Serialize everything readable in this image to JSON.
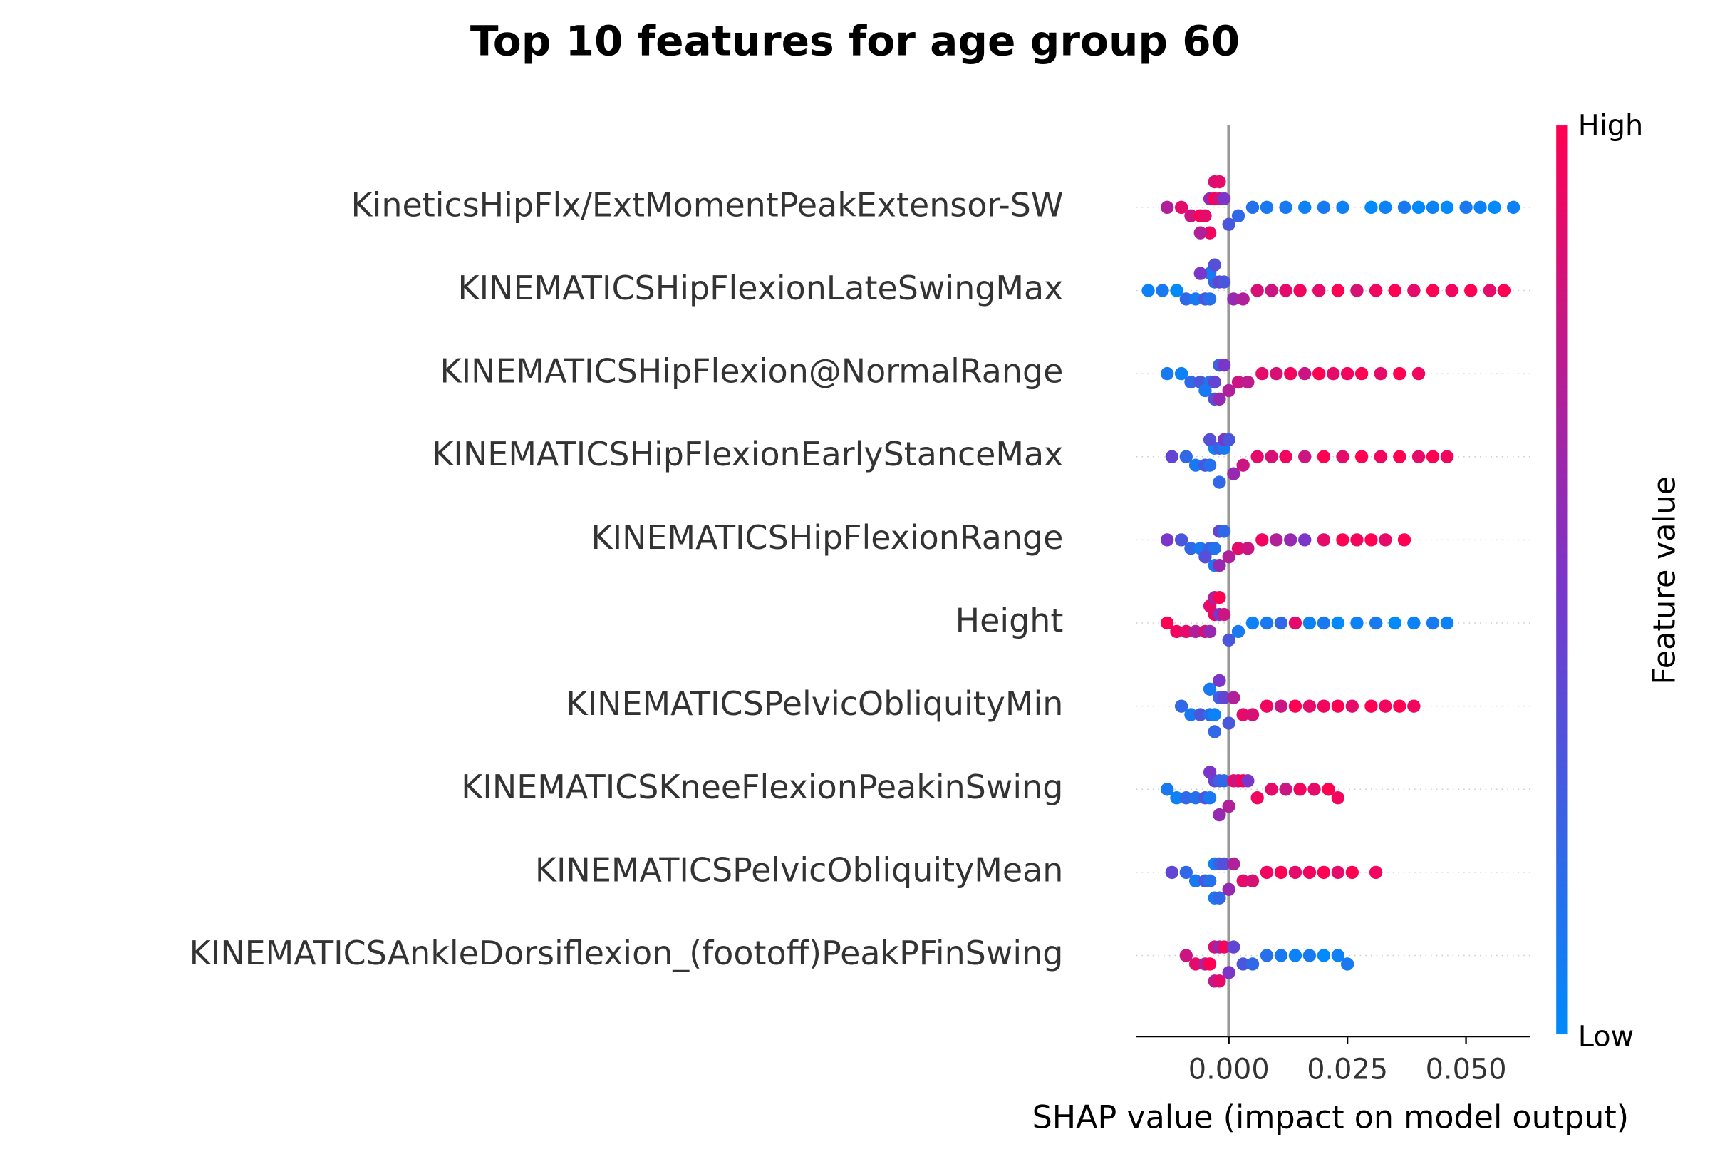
{
  "chart_data": {
    "type": "beeswarm",
    "title": "Top 10 features for age group 60",
    "xlabel": "SHAP value (impact on model output)",
    "xlim": [
      -0.0195,
      0.0635
    ],
    "xticks": [
      {
        "value": 0,
        "label": "0.000"
      },
      {
        "value": 0.025,
        "label": "0.025"
      },
      {
        "value": 0.05,
        "label": "0.050"
      }
    ],
    "colorbar": {
      "label": "Feature value",
      "high": "High",
      "low": "Low",
      "colors": [
        "#008afb",
        "#7b35c9",
        "#ff0052"
      ]
    },
    "features": [
      {
        "name": "KineticsHipFlx/ExtMomentPeakExtensor-SW",
        "shap": [
          -0.013,
          -0.01,
          -0.008,
          -0.006,
          -0.005,
          -0.004,
          -0.003,
          -0.002,
          -0.001,
          -0.004,
          -0.006,
          -0.003,
          -0.002,
          0.0,
          0.002,
          0.005,
          0.008,
          0.012,
          0.016,
          0.02,
          0.024,
          0.03,
          0.033,
          0.037,
          0.04,
          0.043,
          0.046,
          0.05,
          0.053,
          0.056,
          0.06
        ],
        "feature_value": [
          0.7,
          0.9,
          0.8,
          1,
          0.9,
          0.6,
          1,
          0.8,
          0.5,
          0.95,
          0.7,
          0.85,
          0.9,
          0.3,
          0.2,
          0.15,
          0.1,
          0.1,
          0.05,
          0.1,
          0.05,
          0,
          0.05,
          0.1,
          0,
          0.05,
          0,
          0.1,
          0.05,
          0,
          0.05
        ]
      },
      {
        "name": "KINEMATICSHipFlexionLateSwingMax",
        "shap": [
          -0.017,
          -0.014,
          -0.011,
          -0.009,
          -0.007,
          -0.005,
          -0.004,
          -0.003,
          -0.002,
          -0.001,
          -0.004,
          -0.006,
          -0.003,
          0.001,
          0.003,
          0.006,
          0.009,
          0.012,
          0.015,
          0.019,
          0.023,
          0.027,
          0.031,
          0.035,
          0.039,
          0.043,
          0.047,
          0.051,
          0.055,
          0.058
        ],
        "feature_value": [
          0.05,
          0.1,
          0,
          0.2,
          0.1,
          0.3,
          0.15,
          0.2,
          0.4,
          0.3,
          0.1,
          0.5,
          0.35,
          0.6,
          0.7,
          0.85,
          0.8,
          0.9,
          0.95,
          0.9,
          1,
          0.85,
          0.95,
          1,
          0.9,
          1,
          0.95,
          1,
          0.9,
          1
        ]
      },
      {
        "name": "KINEMATICSHipFlexion@NormalRange",
        "shap": [
          -0.013,
          -0.01,
          -0.008,
          -0.006,
          -0.004,
          -0.003,
          -0.002,
          -0.001,
          -0.005,
          -0.003,
          -0.002,
          0.0,
          0.002,
          0.004,
          0.007,
          0.01,
          0.013,
          0.016,
          0.019,
          0.022,
          0.025,
          0.028,
          0.032,
          0.036,
          0.04
        ],
        "feature_value": [
          0.1,
          0.05,
          0.2,
          0.3,
          0.15,
          0.4,
          0.25,
          0.5,
          0.1,
          0.35,
          0.6,
          0.7,
          0.8,
          0.75,
          0.9,
          0.85,
          0.95,
          0.8,
          1,
          0.9,
          0.95,
          1,
          0.9,
          1,
          0.95
        ]
      },
      {
        "name": "KINEMATICSHipFlexionEarlyStanceMax",
        "shap": [
          -0.012,
          -0.009,
          -0.007,
          -0.005,
          -0.004,
          -0.003,
          -0.002,
          -0.001,
          -0.004,
          -0.002,
          -0.001,
          0.0,
          0.001,
          0.003,
          0.006,
          0.009,
          0.012,
          0.016,
          0.02,
          0.024,
          0.028,
          0.032,
          0.036,
          0.04,
          0.043,
          0.046
        ],
        "feature_value": [
          0.4,
          0.2,
          0.1,
          0.3,
          0.15,
          0.05,
          0.25,
          0.1,
          0.35,
          0.2,
          0.5,
          0.3,
          0.6,
          0.8,
          0.9,
          0.85,
          0.95,
          0.8,
          1,
          0.9,
          1,
          0.95,
          1,
          0.9,
          1,
          0.95
        ]
      },
      {
        "name": "KINEMATICSHipFlexionRange",
        "shap": [
          -0.013,
          -0.01,
          -0.008,
          -0.006,
          -0.004,
          -0.003,
          -0.002,
          -0.001,
          -0.005,
          -0.003,
          -0.002,
          0.0,
          0.002,
          0.004,
          0.007,
          0.01,
          0.013,
          0.016,
          0.02,
          0.024,
          0.027,
          0.03,
          0.033,
          0.037
        ],
        "feature_value": [
          0.5,
          0.3,
          0.2,
          0.1,
          0.25,
          0.15,
          0.4,
          0.2,
          0.35,
          0.1,
          0.6,
          0.7,
          0.9,
          0.8,
          0.95,
          0.7,
          0.6,
          0.5,
          0.9,
          1,
          0.95,
          1,
          0.9,
          1
        ]
      },
      {
        "name": "Height",
        "shap": [
          -0.013,
          -0.011,
          -0.009,
          -0.007,
          -0.005,
          -0.004,
          -0.003,
          -0.002,
          -0.001,
          -0.004,
          -0.003,
          -0.002,
          0.0,
          0.002,
          0.005,
          0.008,
          0.011,
          0.014,
          0.017,
          0.02,
          0.023,
          0.027,
          0.031,
          0.035,
          0.039,
          0.043,
          0.046
        ],
        "feature_value": [
          1,
          0.95,
          0.9,
          0.7,
          0.85,
          0.6,
          0.95,
          0.5,
          0.8,
          0.9,
          0.7,
          1,
          0.3,
          0.1,
          0.05,
          0.1,
          0.2,
          0.9,
          0.05,
          0.1,
          0,
          0.05,
          0.1,
          0,
          0.05,
          0.1,
          0.05
        ]
      },
      {
        "name": "KINEMATICSPelvicObliquityMin",
        "shap": [
          -0.01,
          -0.008,
          -0.006,
          -0.004,
          -0.003,
          -0.002,
          -0.001,
          -0.004,
          -0.003,
          -0.002,
          0.0,
          0.001,
          0.003,
          0.005,
          0.008,
          0.011,
          0.014,
          0.017,
          0.02,
          0.023,
          0.026,
          0.03,
          0.033,
          0.036,
          0.039
        ],
        "feature_value": [
          0.2,
          0.1,
          0.3,
          0.15,
          0.05,
          0.25,
          0.4,
          0.1,
          0.2,
          0.5,
          0.3,
          0.7,
          0.9,
          0.85,
          0.95,
          0.8,
          1,
          0.9,
          0.95,
          1,
          0.9,
          1,
          0.95,
          1,
          0.95
        ]
      },
      {
        "name": "KINEMATICSKneeFlexionPeakinSwing",
        "shap": [
          -0.013,
          -0.011,
          -0.009,
          -0.007,
          -0.005,
          -0.004,
          -0.003,
          -0.002,
          -0.001,
          -0.004,
          -0.002,
          0.0,
          0.001,
          0.002,
          0.003,
          0.004,
          0.006,
          0.009,
          0.012,
          0.015,
          0.018,
          0.021,
          0.023
        ],
        "feature_value": [
          0.1,
          0.05,
          0.2,
          0.15,
          0.3,
          0.1,
          0.4,
          0.25,
          0.2,
          0.5,
          0.6,
          0.7,
          0.9,
          0.8,
          1,
          0.5,
          0.95,
          0.9,
          0.8,
          0.95,
          0.9,
          1,
          0.95
        ]
      },
      {
        "name": "KINEMATICSPelvicObliquityMean",
        "shap": [
          -0.012,
          -0.009,
          -0.007,
          -0.005,
          -0.004,
          -0.003,
          -0.002,
          -0.001,
          -0.003,
          -0.002,
          0.0,
          0.001,
          0.003,
          0.005,
          0.008,
          0.011,
          0.014,
          0.017,
          0.02,
          0.023,
          0.026,
          0.031
        ],
        "feature_value": [
          0.4,
          0.2,
          0.1,
          0.3,
          0.15,
          0.05,
          0.25,
          0.35,
          0.1,
          0.2,
          0.6,
          0.7,
          0.9,
          0.85,
          0.95,
          1,
          0.9,
          0.95,
          1,
          0.9,
          1,
          0.95
        ]
      },
      {
        "name": "KINEMATICSAnkleDorsiflexion_(footoff)PeakPFinSwing",
        "shap": [
          -0.009,
          -0.007,
          -0.005,
          -0.004,
          -0.003,
          -0.002,
          -0.001,
          -0.003,
          -0.002,
          0.0,
          0.001,
          0.003,
          0.005,
          0.008,
          0.011,
          0.014,
          0.017,
          0.02,
          0.023,
          0.025
        ],
        "feature_value": [
          0.8,
          0.9,
          0.7,
          1,
          0.85,
          0.6,
          0.95,
          0.75,
          0.9,
          0.5,
          0.4,
          0.3,
          0.2,
          0.15,
          0.1,
          0.05,
          0.1,
          0,
          0.05,
          0.1
        ]
      }
    ]
  }
}
